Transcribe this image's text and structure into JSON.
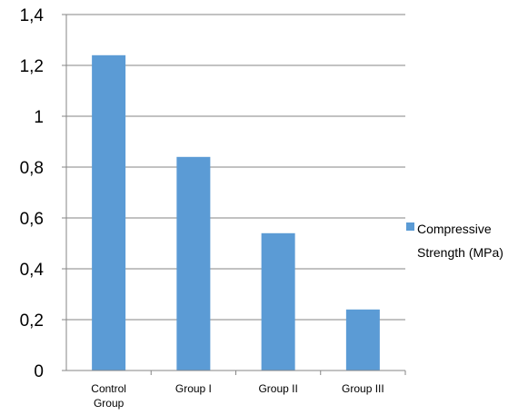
{
  "chart_data": {
    "type": "bar",
    "categories": [
      "Control Group",
      "Group I",
      "Group II",
      "Group III"
    ],
    "series": [
      {
        "name": "Compressive Strength (MPa)",
        "values": [
          1.24,
          0.84,
          0.54,
          0.24
        ],
        "color": "#5b9bd5"
      }
    ],
    "yticks": [
      "0",
      "0,2",
      "0,4",
      "0,6",
      "0,8",
      "1",
      "1,2",
      "1,4"
    ],
    "ylim": [
      0,
      1.4
    ],
    "grid": true,
    "legend_position": "right",
    "title": "",
    "xlabel": "",
    "ylabel": ""
  }
}
